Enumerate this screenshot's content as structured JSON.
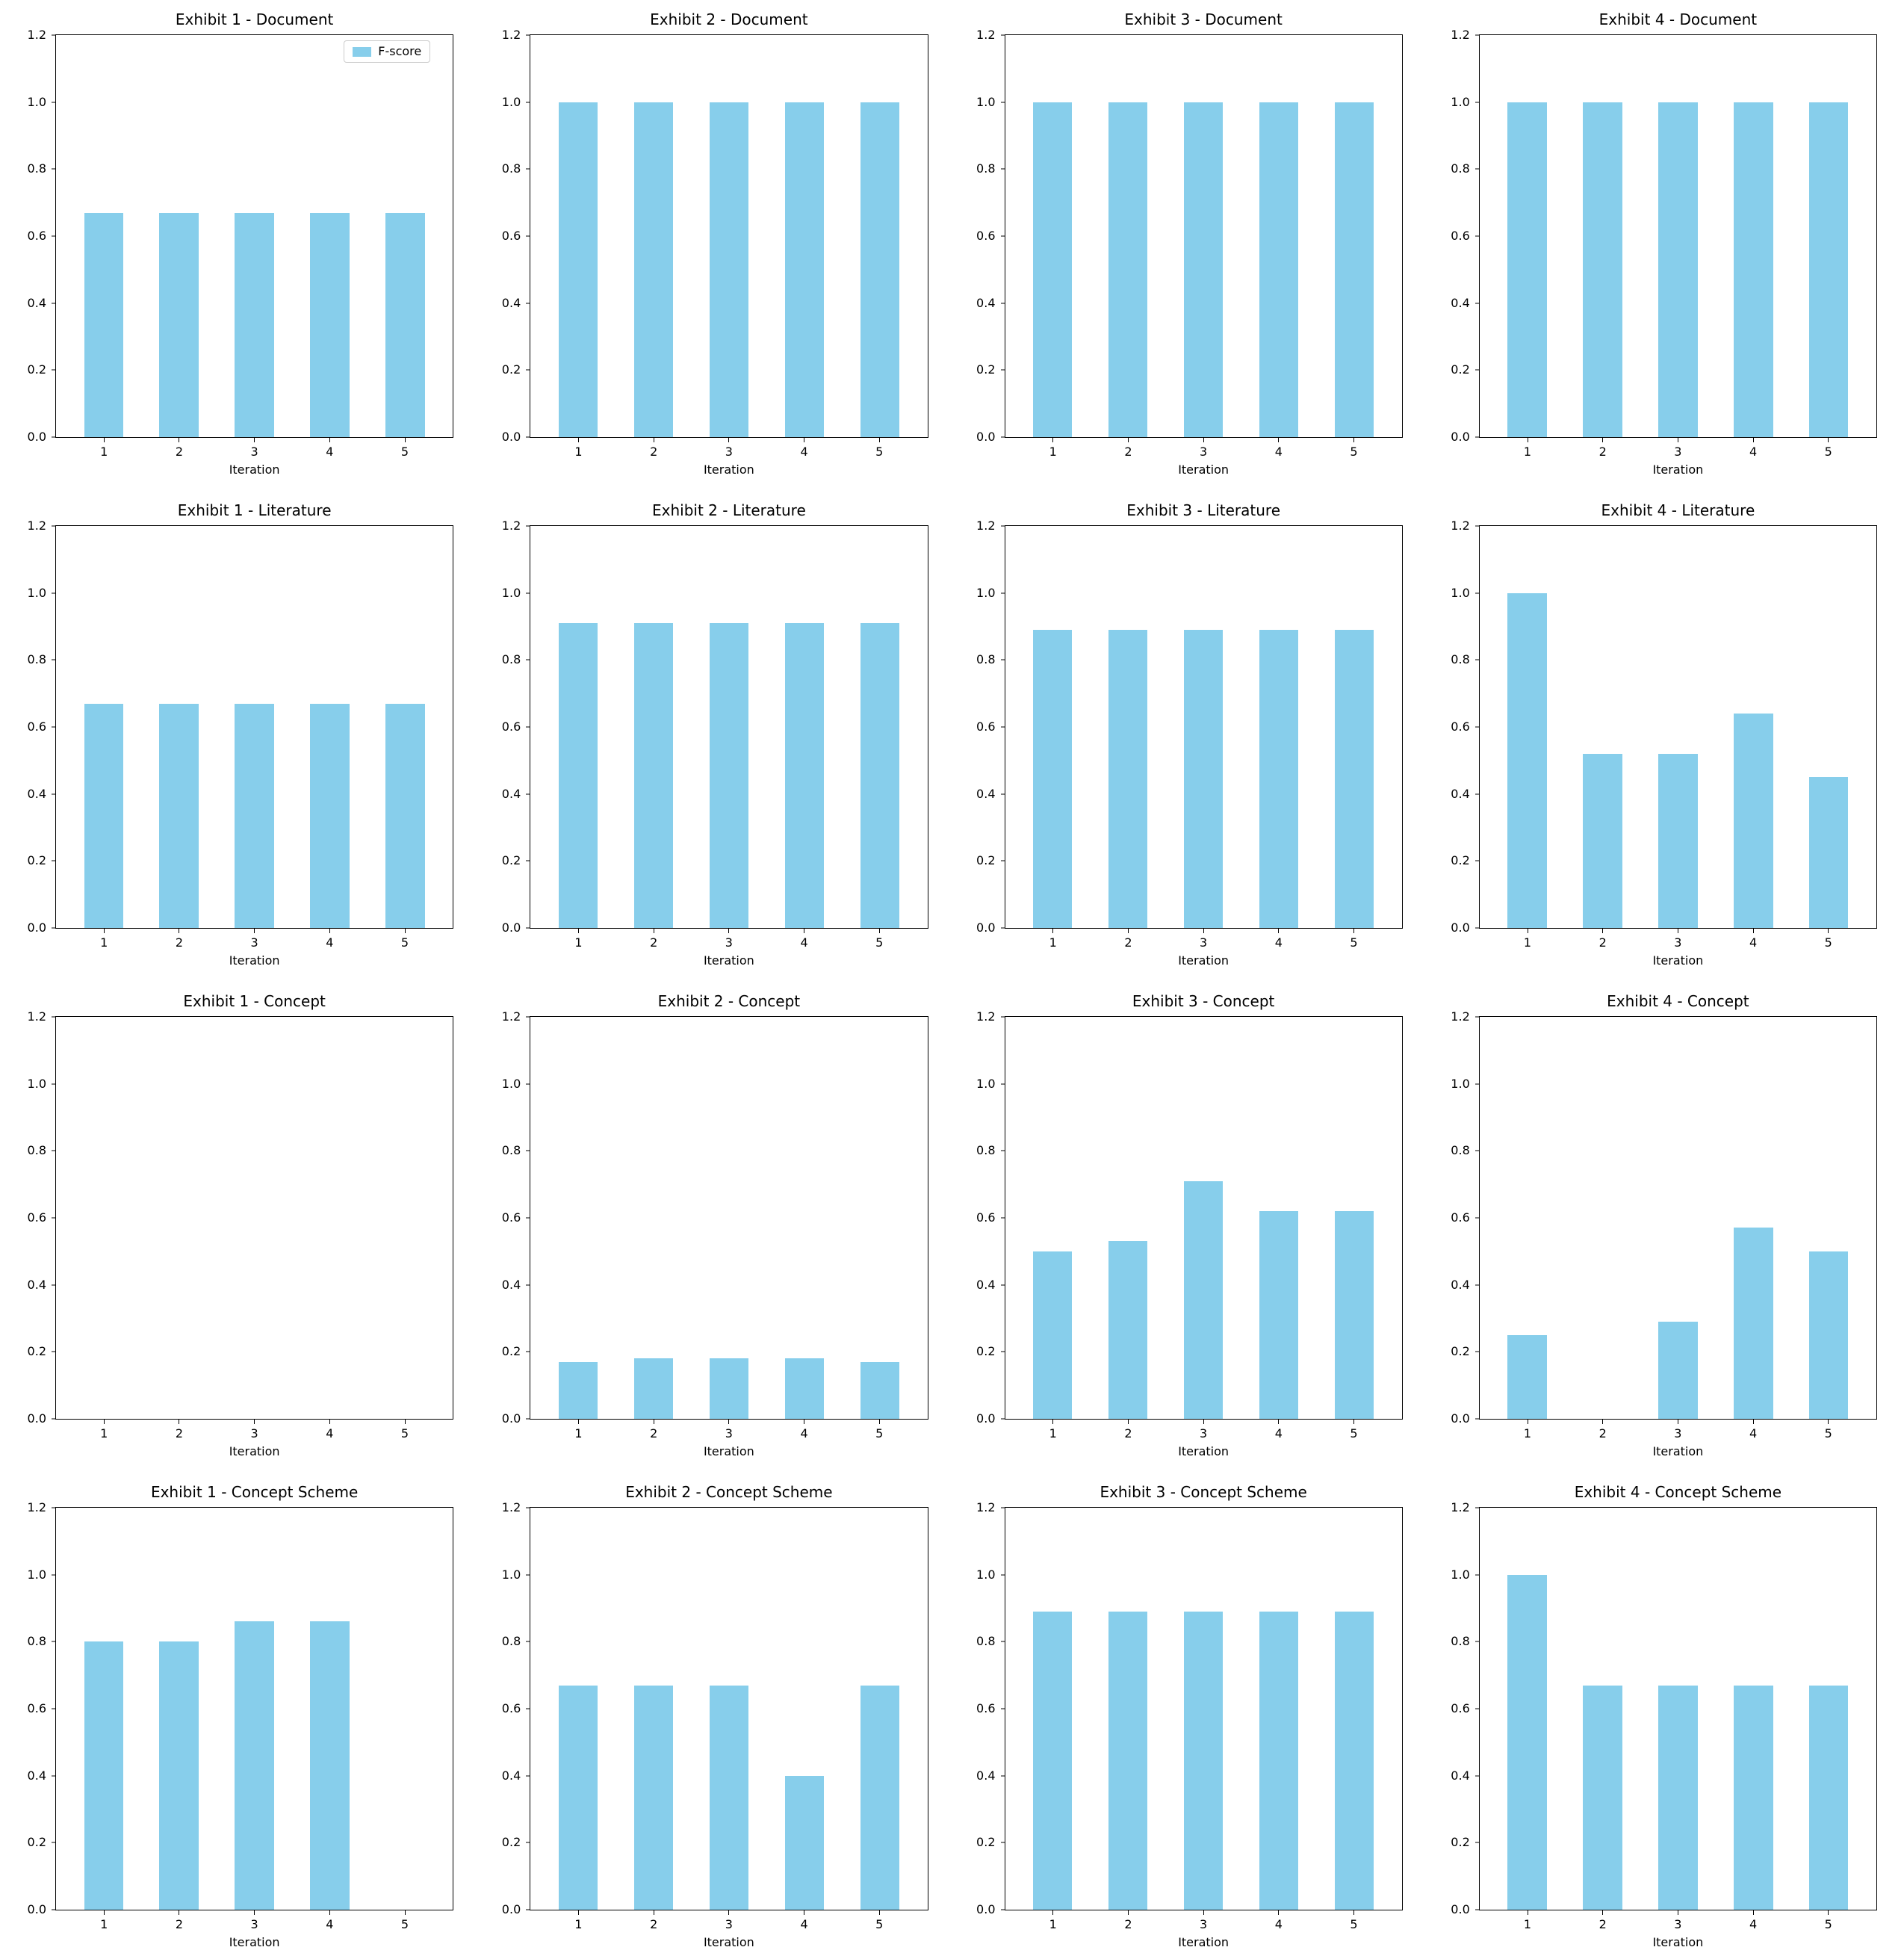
{
  "figure": {
    "background": "#ffffff",
    "bar_color": "#87CEEB",
    "axis_color": "#000000",
    "legend_label": "F-score"
  },
  "chart_data": [
    {
      "type": "bar",
      "title": "Exhibit 1 - Document",
      "xlabel": "Iteration",
      "ylabel": "",
      "categories": [
        "1",
        "2",
        "3",
        "4",
        "5"
      ],
      "values": [
        0.67,
        0.67,
        0.67,
        0.67,
        0.67
      ],
      "ylim": [
        0,
        1.2
      ],
      "yticks": [
        0.0,
        0.2,
        0.4,
        0.6,
        0.8,
        1.0,
        1.2
      ],
      "legend": [
        "F-score"
      ],
      "legend_position": "upper right",
      "grid": false
    },
    {
      "type": "bar",
      "title": "Exhibit 2 - Document",
      "xlabel": "Iteration",
      "ylabel": "",
      "categories": [
        "1",
        "2",
        "3",
        "4",
        "5"
      ],
      "values": [
        1.0,
        1.0,
        1.0,
        1.0,
        1.0
      ],
      "ylim": [
        0,
        1.2
      ],
      "yticks": [
        0.0,
        0.2,
        0.4,
        0.6,
        0.8,
        1.0,
        1.2
      ],
      "legend": [],
      "grid": false
    },
    {
      "type": "bar",
      "title": "Exhibit 3 - Document",
      "xlabel": "Iteration",
      "ylabel": "",
      "categories": [
        "1",
        "2",
        "3",
        "4",
        "5"
      ],
      "values": [
        1.0,
        1.0,
        1.0,
        1.0,
        1.0
      ],
      "ylim": [
        0,
        1.2
      ],
      "yticks": [
        0.0,
        0.2,
        0.4,
        0.6,
        0.8,
        1.0,
        1.2
      ],
      "legend": [],
      "grid": false
    },
    {
      "type": "bar",
      "title": "Exhibit 4 - Document",
      "xlabel": "Iteration",
      "ylabel": "",
      "categories": [
        "1",
        "2",
        "3",
        "4",
        "5"
      ],
      "values": [
        1.0,
        1.0,
        1.0,
        1.0,
        1.0
      ],
      "ylim": [
        0,
        1.2
      ],
      "yticks": [
        0.0,
        0.2,
        0.4,
        0.6,
        0.8,
        1.0,
        1.2
      ],
      "legend": [],
      "grid": false
    },
    {
      "type": "bar",
      "title": "Exhibit 1 - Literature",
      "xlabel": "Iteration",
      "ylabel": "",
      "categories": [
        "1",
        "2",
        "3",
        "4",
        "5"
      ],
      "values": [
        0.67,
        0.67,
        0.67,
        0.67,
        0.67
      ],
      "ylim": [
        0,
        1.2
      ],
      "yticks": [
        0.0,
        0.2,
        0.4,
        0.6,
        0.8,
        1.0,
        1.2
      ],
      "legend": [],
      "grid": false
    },
    {
      "type": "bar",
      "title": "Exhibit 2 - Literature",
      "xlabel": "Iteration",
      "ylabel": "",
      "categories": [
        "1",
        "2",
        "3",
        "4",
        "5"
      ],
      "values": [
        0.91,
        0.91,
        0.91,
        0.91,
        0.91
      ],
      "ylim": [
        0,
        1.2
      ],
      "yticks": [
        0.0,
        0.2,
        0.4,
        0.6,
        0.8,
        1.0,
        1.2
      ],
      "legend": [],
      "grid": false
    },
    {
      "type": "bar",
      "title": "Exhibit 3 - Literature",
      "xlabel": "Iteration",
      "ylabel": "",
      "categories": [
        "1",
        "2",
        "3",
        "4",
        "5"
      ],
      "values": [
        0.89,
        0.89,
        0.89,
        0.89,
        0.89
      ],
      "ylim": [
        0,
        1.2
      ],
      "yticks": [
        0.0,
        0.2,
        0.4,
        0.6,
        0.8,
        1.0,
        1.2
      ],
      "legend": [],
      "grid": false
    },
    {
      "type": "bar",
      "title": "Exhibit 4 - Literature",
      "xlabel": "Iteration",
      "ylabel": "",
      "categories": [
        "1",
        "2",
        "3",
        "4",
        "5"
      ],
      "values": [
        1.0,
        0.52,
        0.52,
        0.64,
        0.45
      ],
      "ylim": [
        0,
        1.2
      ],
      "yticks": [
        0.0,
        0.2,
        0.4,
        0.6,
        0.8,
        1.0,
        1.2
      ],
      "legend": [],
      "grid": false
    },
    {
      "type": "bar",
      "title": "Exhibit 1 - Concept",
      "xlabel": "Iteration",
      "ylabel": "",
      "categories": [
        "1",
        "2",
        "3",
        "4",
        "5"
      ],
      "values": [
        0,
        0,
        0,
        0,
        0
      ],
      "ylim": [
        0,
        1.2
      ],
      "yticks": [
        0.0,
        0.2,
        0.4,
        0.6,
        0.8,
        1.0,
        1.2
      ],
      "legend": [],
      "grid": false
    },
    {
      "type": "bar",
      "title": "Exhibit 2 - Concept",
      "xlabel": "Iteration",
      "ylabel": "",
      "categories": [
        "1",
        "2",
        "3",
        "4",
        "5"
      ],
      "values": [
        0.17,
        0.18,
        0.18,
        0.18,
        0.17
      ],
      "ylim": [
        0,
        1.2
      ],
      "yticks": [
        0.0,
        0.2,
        0.4,
        0.6,
        0.8,
        1.0,
        1.2
      ],
      "legend": [],
      "grid": false
    },
    {
      "type": "bar",
      "title": "Exhibit 3 - Concept",
      "xlabel": "Iteration",
      "ylabel": "",
      "categories": [
        "1",
        "2",
        "3",
        "4",
        "5"
      ],
      "values": [
        0.5,
        0.53,
        0.71,
        0.62,
        0.62
      ],
      "ylim": [
        0,
        1.2
      ],
      "yticks": [
        0.0,
        0.2,
        0.4,
        0.6,
        0.8,
        1.0,
        1.2
      ],
      "legend": [],
      "grid": false
    },
    {
      "type": "bar",
      "title": "Exhibit 4 - Concept",
      "xlabel": "Iteration",
      "ylabel": "",
      "categories": [
        "1",
        "2",
        "3",
        "4",
        "5"
      ],
      "values": [
        0.25,
        0,
        0.29,
        0.57,
        0.5
      ],
      "ylim": [
        0,
        1.2
      ],
      "yticks": [
        0.0,
        0.2,
        0.4,
        0.6,
        0.8,
        1.0,
        1.2
      ],
      "legend": [],
      "grid": false
    },
    {
      "type": "bar",
      "title": "Exhibit 1 - Concept Scheme",
      "xlabel": "Iteration",
      "ylabel": "",
      "categories": [
        "1",
        "2",
        "3",
        "4",
        "5"
      ],
      "values": [
        0.8,
        0.8,
        0.86,
        0.86,
        0
      ],
      "ylim": [
        0,
        1.2
      ],
      "yticks": [
        0.0,
        0.2,
        0.4,
        0.6,
        0.8,
        1.0,
        1.2
      ],
      "legend": [],
      "grid": false
    },
    {
      "type": "bar",
      "title": "Exhibit 2 - Concept Scheme",
      "xlabel": "Iteration",
      "ylabel": "",
      "categories": [
        "1",
        "2",
        "3",
        "4",
        "5"
      ],
      "values": [
        0.67,
        0.67,
        0.67,
        0.4,
        0.67
      ],
      "ylim": [
        0,
        1.2
      ],
      "yticks": [
        0.0,
        0.2,
        0.4,
        0.6,
        0.8,
        1.0,
        1.2
      ],
      "legend": [],
      "grid": false
    },
    {
      "type": "bar",
      "title": "Exhibit 3 - Concept Scheme",
      "xlabel": "Iteration",
      "ylabel": "",
      "categories": [
        "1",
        "2",
        "3",
        "4",
        "5"
      ],
      "values": [
        0.89,
        0.89,
        0.89,
        0.89,
        0.89
      ],
      "ylim": [
        0,
        1.2
      ],
      "yticks": [
        0.0,
        0.2,
        0.4,
        0.6,
        0.8,
        1.0,
        1.2
      ],
      "legend": [],
      "grid": false
    },
    {
      "type": "bar",
      "title": "Exhibit 4 - Concept Scheme",
      "xlabel": "Iteration",
      "ylabel": "",
      "categories": [
        "1",
        "2",
        "3",
        "4",
        "5"
      ],
      "values": [
        1.0,
        0.67,
        0.67,
        0.67,
        0.67
      ],
      "ylim": [
        0,
        1.2
      ],
      "yticks": [
        0.0,
        0.2,
        0.4,
        0.6,
        0.8,
        1.0,
        1.2
      ],
      "legend": [],
      "grid": false
    }
  ]
}
